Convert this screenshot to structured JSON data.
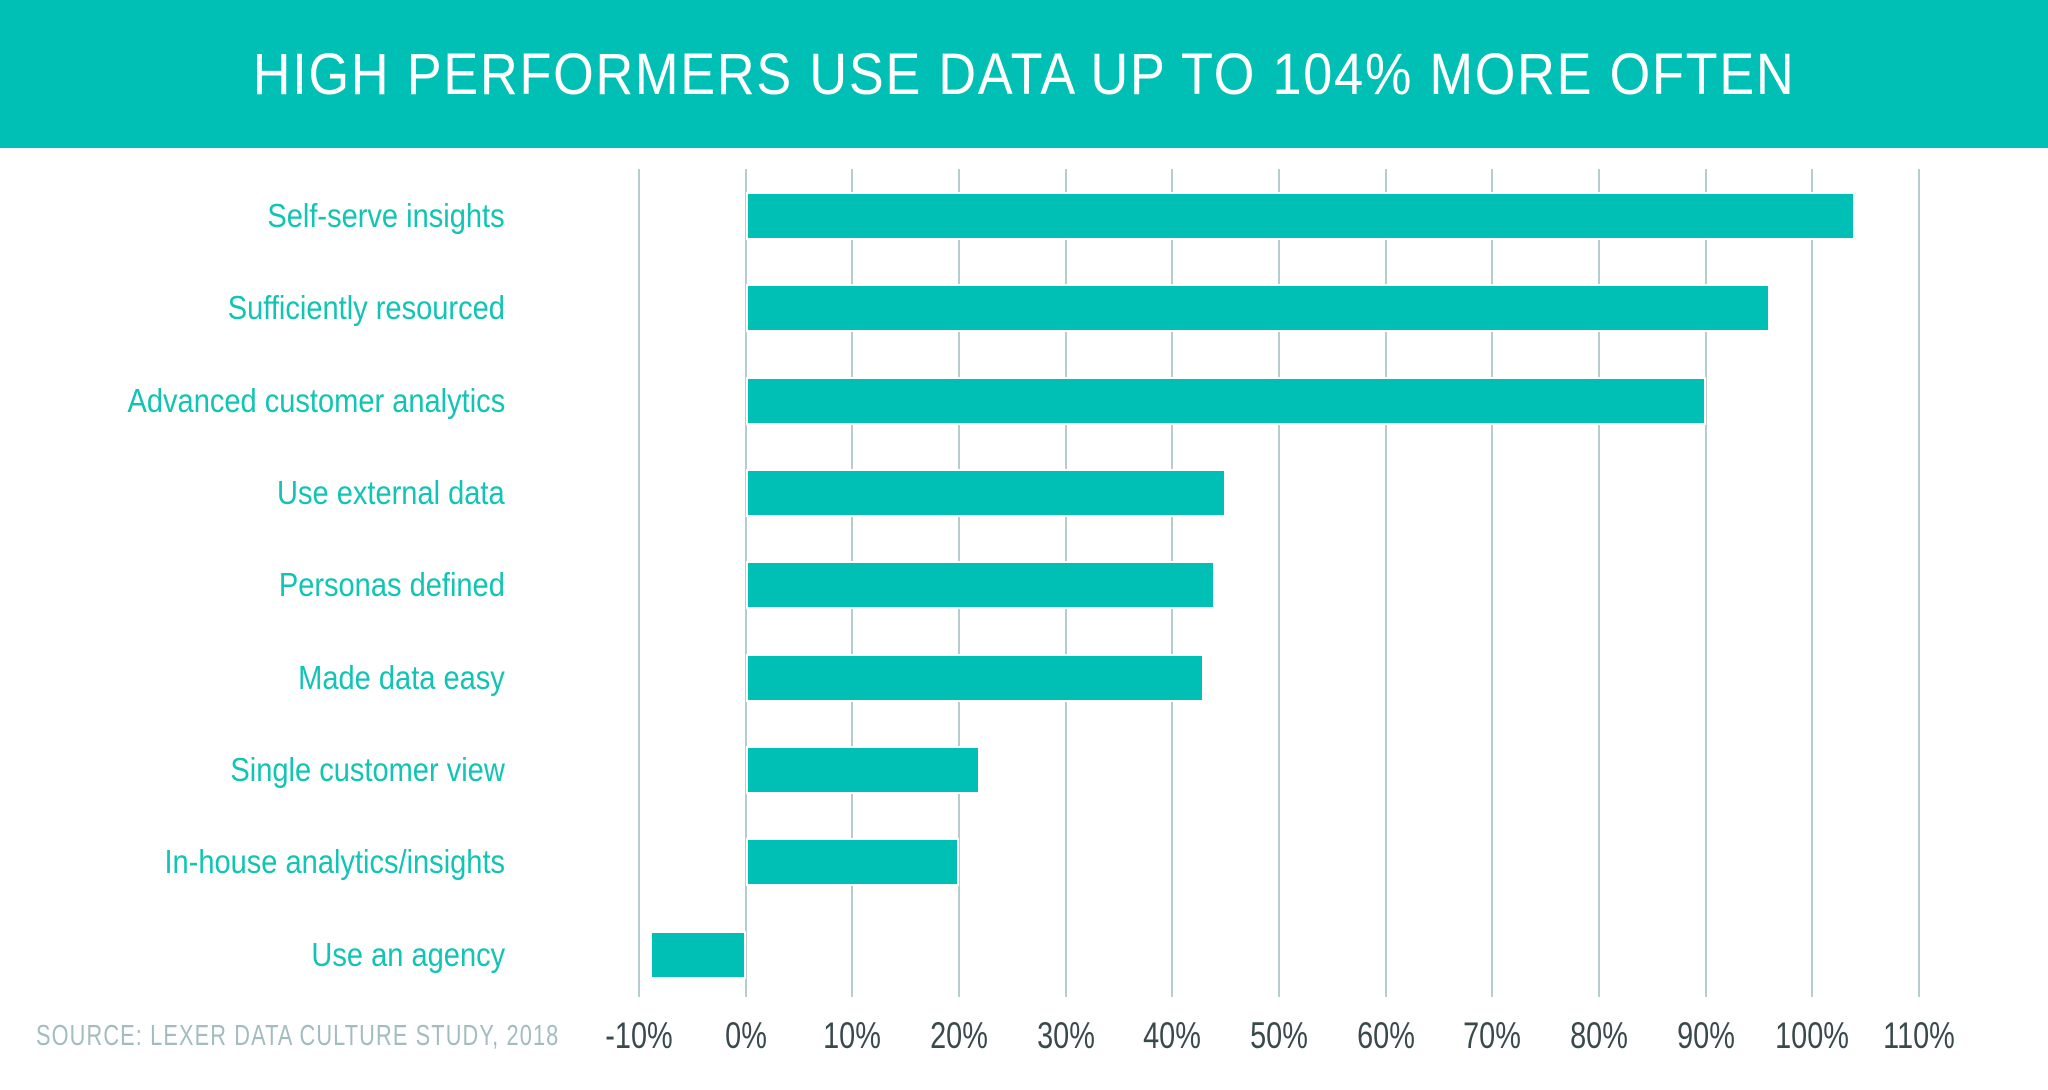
{
  "title": "HIGH PERFORMERS USE DATA UP TO 104% MORE OFTEN",
  "source": "SOURCE: LEXER DATA CULTURE STUDY, 2018",
  "chart_data": {
    "type": "bar",
    "orientation": "horizontal",
    "title": "HIGH PERFORMERS USE DATA UP TO 104% MORE OFTEN",
    "categories": [
      "Self-serve insights",
      "Sufficiently resourced",
      "Advanced customer analytics",
      "Use external data",
      "Personas defined",
      "Made data easy",
      "Single customer view",
      "In-house analytics/insights",
      "Use an agency"
    ],
    "values": [
      104,
      96,
      90,
      45,
      44,
      43,
      22,
      20,
      -9
    ],
    "unit": "%",
    "xlabel": "",
    "ylabel": "",
    "xlim": [
      -10,
      110
    ],
    "x_ticks": [
      -10,
      0,
      10,
      20,
      30,
      40,
      50,
      60,
      70,
      80,
      90,
      100,
      110
    ],
    "x_tick_labels": [
      "-10%",
      "0%",
      "10%",
      "20%",
      "30%",
      "40%",
      "50%",
      "60%",
      "70%",
      "80%",
      "90%",
      "100%",
      "110%"
    ],
    "grid": true,
    "legend": "none",
    "colors": {
      "bar": "#00BFB4",
      "banner": "#00BFB4",
      "category_label": "#12C4B4",
      "axis_text": "#3A4A4C",
      "gridline": "#B7CCCE",
      "source_text": "#A3BCBF",
      "title_text": "#FFFFFF"
    }
  }
}
